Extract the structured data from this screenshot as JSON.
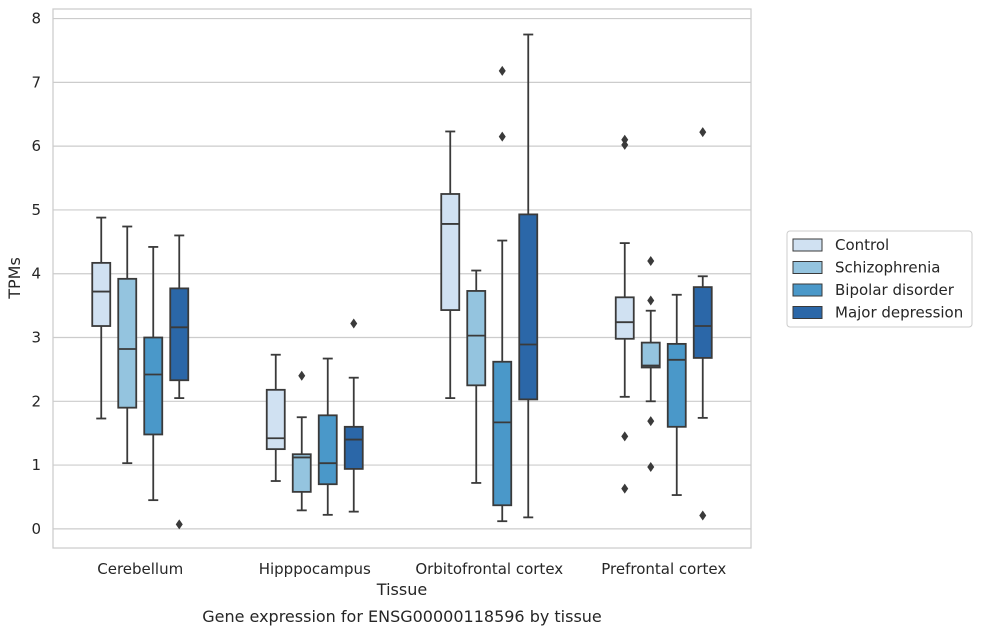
{
  "chart_data": {
    "type": "box",
    "title": "Gene expression for ENSG00000118596 by tissue",
    "xlabel": "Tissue",
    "ylabel": "TPMs",
    "ylim": [
      -0.3,
      8.15
    ],
    "yticks": [
      0,
      1,
      2,
      3,
      4,
      5,
      6,
      7,
      8
    ],
    "grid": "horizontal",
    "legend_position": "right",
    "categories": [
      "Cerebellum",
      "Hipppocampus",
      "Orbitofrontal cortex",
      "Prefrontal cortex"
    ],
    "series": [
      {
        "name": "Control",
        "color": "#d0e1f2",
        "boxes": [
          {
            "whislo": 1.73,
            "q1": 3.18,
            "med": 3.72,
            "q3": 4.17,
            "whishi": 4.88,
            "fliers": []
          },
          {
            "whislo": 0.75,
            "q1": 1.25,
            "med": 1.42,
            "q3": 2.18,
            "whishi": 2.73,
            "fliers": []
          },
          {
            "whislo": 2.05,
            "q1": 3.43,
            "med": 4.78,
            "q3": 5.25,
            "whishi": 6.23,
            "fliers": []
          },
          {
            "whislo": 2.07,
            "q1": 2.98,
            "med": 3.24,
            "q3": 3.63,
            "whishi": 4.48,
            "fliers": [
              0.63,
              1.45,
              6.02,
              6.1
            ]
          }
        ]
      },
      {
        "name": "Schizophrenia",
        "color": "#94c4df",
        "boxes": [
          {
            "whislo": 1.03,
            "q1": 1.9,
            "med": 2.82,
            "q3": 3.92,
            "whishi": 4.74,
            "fliers": []
          },
          {
            "whislo": 0.29,
            "q1": 0.58,
            "med": 1.12,
            "q3": 1.17,
            "whishi": 1.75,
            "fliers": [
              2.4
            ]
          },
          {
            "whislo": 0.72,
            "q1": 2.25,
            "med": 3.03,
            "q3": 3.73,
            "whishi": 4.05,
            "fliers": []
          },
          {
            "whislo": 2.0,
            "q1": 2.53,
            "med": 2.56,
            "q3": 2.92,
            "whishi": 3.42,
            "fliers": [
              0.97,
              1.69,
              3.58,
              4.2
            ]
          }
        ]
      },
      {
        "name": "Bipolar disorder",
        "color": "#4a98c9",
        "boxes": [
          {
            "whislo": 0.45,
            "q1": 1.48,
            "med": 2.42,
            "q3": 3.0,
            "whishi": 4.42,
            "fliers": []
          },
          {
            "whislo": 0.22,
            "q1": 0.7,
            "med": 1.03,
            "q3": 1.78,
            "whishi": 2.67,
            "fliers": []
          },
          {
            "whislo": 0.12,
            "q1": 0.37,
            "med": 1.67,
            "q3": 2.62,
            "whishi": 4.52,
            "fliers": [
              6.15,
              7.18
            ]
          },
          {
            "whislo": 0.53,
            "q1": 1.6,
            "med": 2.65,
            "q3": 2.9,
            "whishi": 3.67,
            "fliers": []
          }
        ]
      },
      {
        "name": "Major depression",
        "color": "#2b67a8",
        "boxes": [
          {
            "whislo": 2.05,
            "q1": 2.33,
            "med": 3.16,
            "q3": 3.77,
            "whishi": 4.6,
            "fliers": [
              0.07
            ]
          },
          {
            "whislo": 0.27,
            "q1": 0.94,
            "med": 1.4,
            "q3": 1.6,
            "whishi": 2.37,
            "fliers": [
              3.22
            ]
          },
          {
            "whislo": 0.18,
            "q1": 2.03,
            "med": 2.89,
            "q3": 4.93,
            "whishi": 7.75,
            "fliers": []
          },
          {
            "whislo": 1.74,
            "q1": 2.68,
            "med": 3.18,
            "q3": 3.79,
            "whishi": 3.96,
            "fliers": [
              0.21,
              6.22
            ]
          }
        ]
      }
    ]
  }
}
